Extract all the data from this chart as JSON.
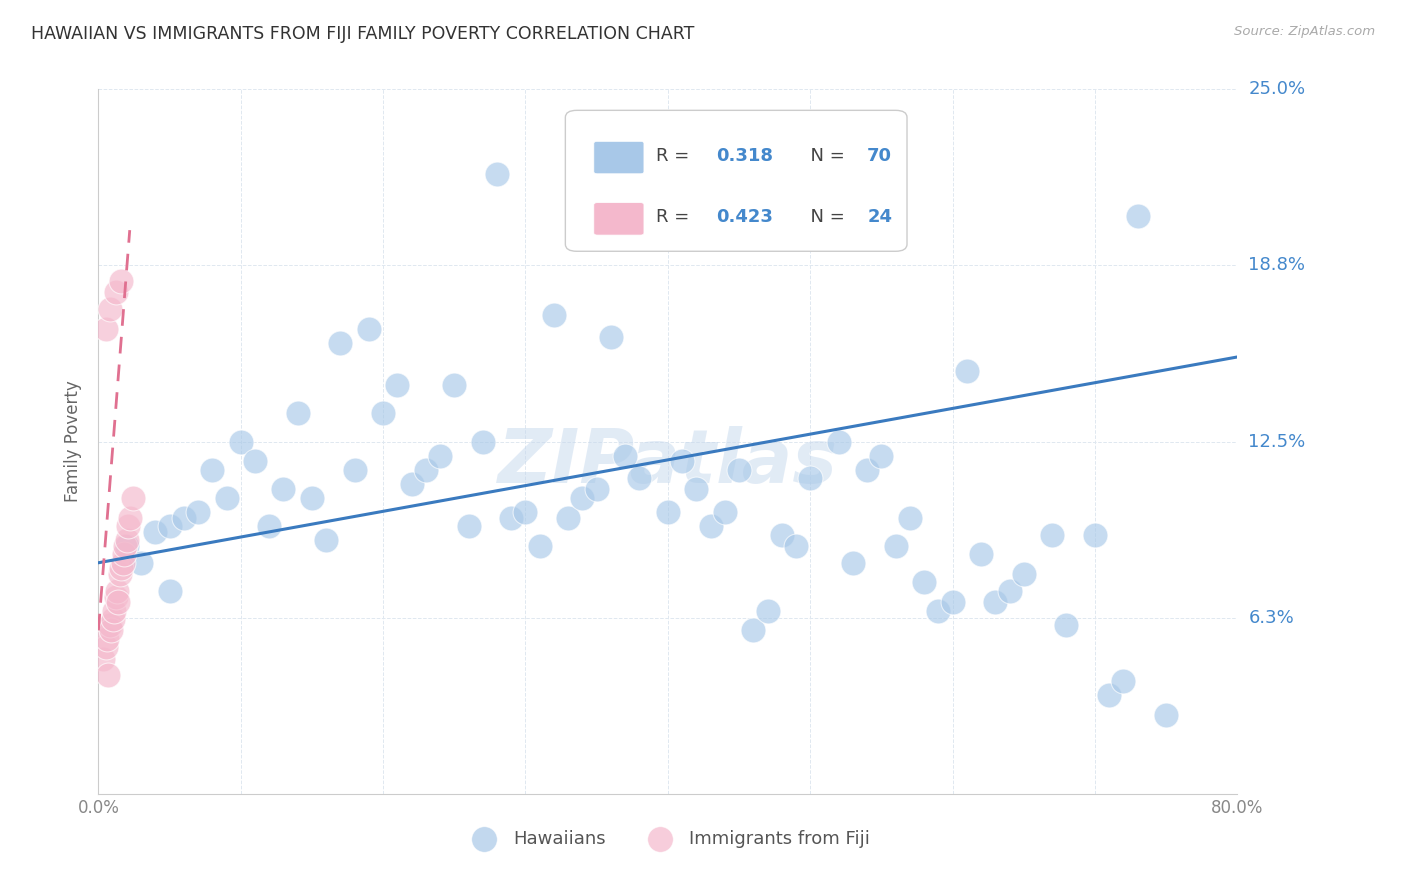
{
  "title": "HAWAIIAN VS IMMIGRANTS FROM FIJI FAMILY POVERTY CORRELATION CHART",
  "source": "Source: ZipAtlas.com",
  "ylabel": "Family Poverty",
  "xlim": [
    0.0,
    0.8
  ],
  "ylim": [
    0.0,
    0.25
  ],
  "yticks": [
    0.0,
    0.0625,
    0.125,
    0.1875,
    0.25
  ],
  "ytick_labels": [
    "",
    "6.3%",
    "12.5%",
    "18.8%",
    "25.0%"
  ],
  "xticks": [
    0.0,
    0.1,
    0.2,
    0.3,
    0.4,
    0.5,
    0.6,
    0.7,
    0.8
  ],
  "xtick_labels": [
    "0.0%",
    "",
    "",
    "",
    "",
    "",
    "",
    "",
    "80.0%"
  ],
  "watermark": "ZIPatlas",
  "blue_scatter_color": "#a8c8e8",
  "pink_scatter_color": "#f4b8cc",
  "blue_line_color": "#3a7abf",
  "pink_line_color": "#e07090",
  "text_color": "#4488cc",
  "grid_color": "#e0e8f0",
  "background_color": "#ffffff",
  "legend_text_color": "#333333",
  "legend_value_color": "#4488cc",
  "hawaiians_x": [
    0.02,
    0.03,
    0.04,
    0.05,
    0.05,
    0.06,
    0.07,
    0.08,
    0.09,
    0.1,
    0.11,
    0.12,
    0.13,
    0.14,
    0.15,
    0.16,
    0.17,
    0.18,
    0.19,
    0.2,
    0.21,
    0.22,
    0.23,
    0.24,
    0.25,
    0.26,
    0.27,
    0.28,
    0.29,
    0.3,
    0.31,
    0.32,
    0.33,
    0.34,
    0.35,
    0.37,
    0.38,
    0.4,
    0.41,
    0.42,
    0.43,
    0.44,
    0.45,
    0.46,
    0.48,
    0.49,
    0.5,
    0.52,
    0.53,
    0.54,
    0.55,
    0.57,
    0.58,
    0.59,
    0.6,
    0.62,
    0.63,
    0.64,
    0.65,
    0.67,
    0.68,
    0.7,
    0.71,
    0.72,
    0.73,
    0.75,
    0.36,
    0.47,
    0.56,
    0.61
  ],
  "hawaiians_y": [
    0.088,
    0.082,
    0.093,
    0.095,
    0.072,
    0.098,
    0.1,
    0.115,
    0.105,
    0.125,
    0.118,
    0.095,
    0.108,
    0.135,
    0.105,
    0.09,
    0.16,
    0.115,
    0.165,
    0.135,
    0.145,
    0.11,
    0.115,
    0.12,
    0.145,
    0.095,
    0.125,
    0.22,
    0.098,
    0.1,
    0.088,
    0.17,
    0.098,
    0.105,
    0.108,
    0.12,
    0.112,
    0.1,
    0.118,
    0.108,
    0.095,
    0.1,
    0.115,
    0.058,
    0.092,
    0.088,
    0.112,
    0.125,
    0.082,
    0.115,
    0.12,
    0.098,
    0.075,
    0.065,
    0.068,
    0.085,
    0.068,
    0.072,
    0.078,
    0.092,
    0.06,
    0.092,
    0.035,
    0.04,
    0.205,
    0.028,
    0.162,
    0.065,
    0.088,
    0.15
  ],
  "fiji_x": [
    0.003,
    0.005,
    0.006,
    0.007,
    0.008,
    0.009,
    0.01,
    0.011,
    0.012,
    0.013,
    0.014,
    0.015,
    0.016,
    0.017,
    0.018,
    0.019,
    0.02,
    0.021,
    0.022,
    0.024,
    0.005,
    0.008,
    0.012,
    0.016
  ],
  "fiji_y": [
    0.048,
    0.052,
    0.055,
    0.042,
    0.06,
    0.058,
    0.062,
    0.065,
    0.07,
    0.072,
    0.068,
    0.078,
    0.08,
    0.082,
    0.085,
    0.088,
    0.09,
    0.095,
    0.098,
    0.105,
    0.165,
    0.172,
    0.178,
    0.182
  ],
  "blue_trendline_x": [
    0.0,
    0.8
  ],
  "blue_trendline_y": [
    0.082,
    0.155
  ],
  "pink_trendline_x": [
    0.0,
    0.022
  ],
  "pink_trendline_y": [
    0.058,
    0.2
  ]
}
